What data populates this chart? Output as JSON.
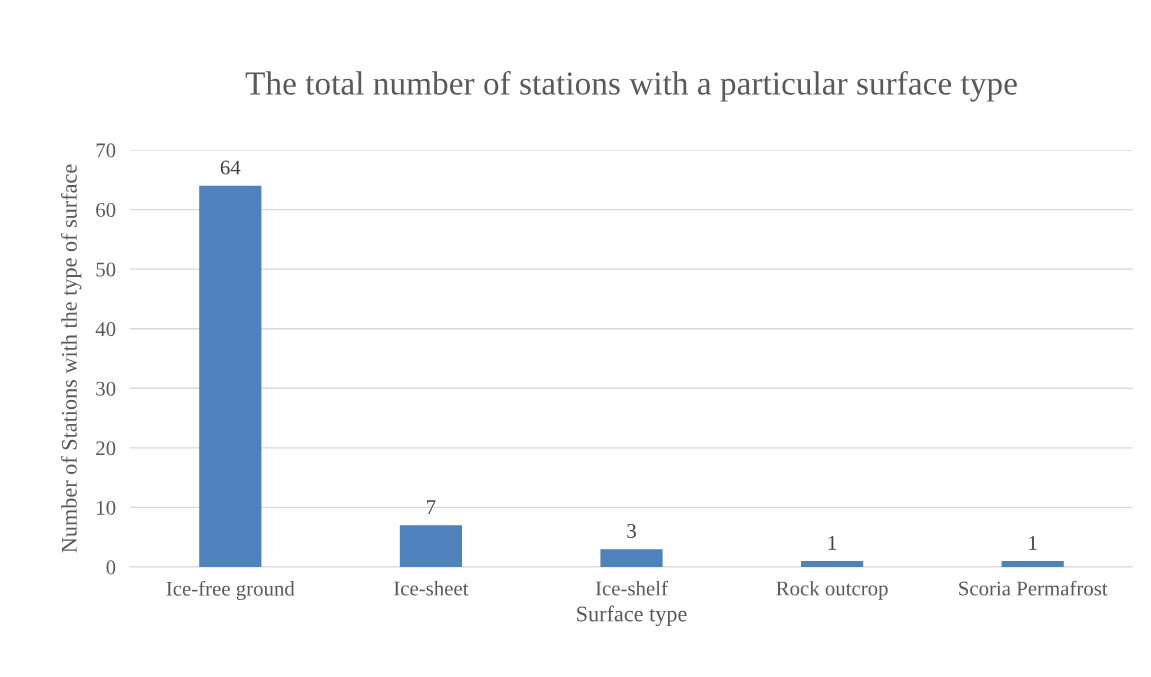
{
  "chart_data": {
    "type": "bar",
    "title": "The total number of stations with a particular surface type",
    "xlabel": "Surface type",
    "ylabel": "Number of Stations with the type of surface",
    "categories": [
      "Ice-free ground",
      "Ice-sheet",
      "Ice-shelf",
      "Rock outcrop",
      "Scoria Permafrost"
    ],
    "values": [
      64,
      7,
      3,
      1,
      1
    ],
    "color": "#4f81bd",
    "ylim": [
      0,
      70
    ],
    "yticks": [
      0,
      10,
      20,
      30,
      40,
      50,
      60,
      70
    ],
    "grid": "y",
    "data_labels": true,
    "legend": false
  }
}
